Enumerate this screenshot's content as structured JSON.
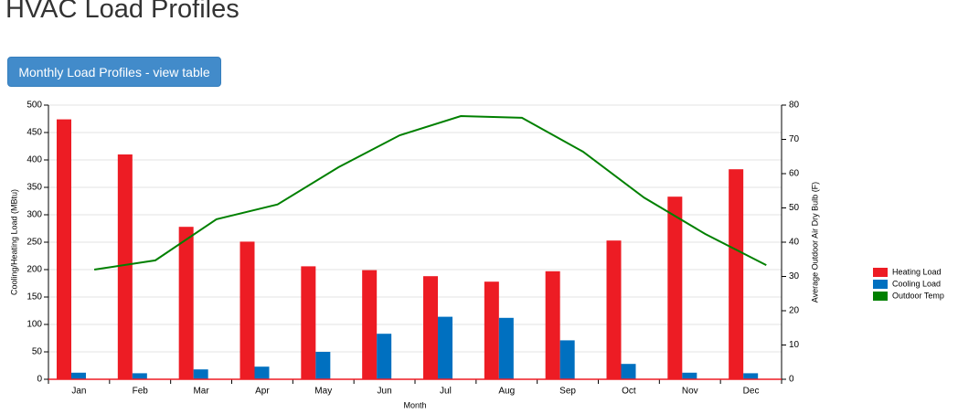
{
  "header": {
    "title": "HVAC Load Profiles"
  },
  "button": {
    "label": "Monthly Load Profiles - view table"
  },
  "chart_data": {
    "type": "bar",
    "x_label": "Month",
    "y_label": "Cooling/Heating Load (MBtu)",
    "y2_label": "Average Outdoor Air Dry Bulb (F)",
    "categories": [
      "Jan",
      "Feb",
      "Mar",
      "Apr",
      "May",
      "Jun",
      "Jul",
      "Aug",
      "Sep",
      "Oct",
      "Nov",
      "Dec"
    ],
    "series": [
      {
        "name": "Heating Load",
        "color": "#ed1c24",
        "values": [
          474,
          410,
          278,
          251,
          206,
          199,
          188,
          178,
          197,
          253,
          333,
          383
        ]
      },
      {
        "name": "Cooling Load",
        "color": "#0070c0",
        "values": [
          12,
          11,
          18,
          23,
          50,
          83,
          114,
          112,
          71,
          28,
          12,
          11
        ]
      },
      {
        "name": "Outdoor Temp",
        "color": "#008000",
        "type": "line",
        "axis": "y2",
        "values": [
          32,
          34.7,
          46.7,
          51,
          61.9,
          71.2,
          76.8,
          76.3,
          66.4,
          53,
          42.4,
          33.3
        ]
      }
    ],
    "ylim": [
      0,
      500
    ],
    "yticks": [
      0,
      50,
      100,
      150,
      200,
      250,
      300,
      350,
      400,
      450,
      500
    ],
    "y2lim": [
      0,
      80
    ],
    "y2ticks": [
      0,
      10,
      20,
      30,
      40,
      50,
      60,
      70,
      80
    ],
    "grid": true,
    "legend": "right"
  }
}
